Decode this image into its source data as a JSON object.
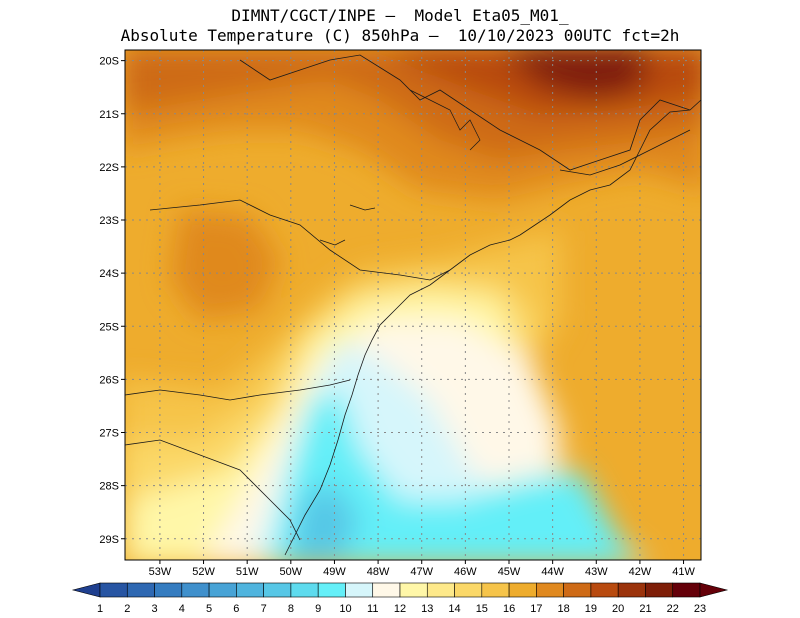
{
  "header": {
    "line1": "DIMNT/CGCT/INPE –  Model Eta05_M01_",
    "line2": "Absolute Temperature (C) 850hPa –  10/10/2023 00UTC fct=2h"
  },
  "map": {
    "lat_labels": [
      "20S",
      "21S",
      "22S",
      "23S",
      "24S",
      "25S",
      "26S",
      "27S",
      "28S",
      "29S"
    ],
    "lon_labels": [
      "53W",
      "52W",
      "51W",
      "50W",
      "49W",
      "48W",
      "47W",
      "46W",
      "45W",
      "44W",
      "43W",
      "42W",
      "41W"
    ],
    "lat_range": [
      -29.4,
      -19.8
    ],
    "lon_range": [
      -53.8,
      -40.6
    ],
    "grid": true
  },
  "colorbar": {
    "labels": [
      "1",
      "2",
      "3",
      "4",
      "5",
      "6",
      "7",
      "8",
      "9",
      "10",
      "11",
      "12",
      "13",
      "14",
      "15",
      "16",
      "17",
      "18",
      "19",
      "20",
      "21",
      "22",
      "23"
    ],
    "colors": [
      "#1f3f8f",
      "#2755a3",
      "#2e68b2",
      "#357cc0",
      "#3f90cc",
      "#47a3d6",
      "#4fb4de",
      "#57c7e6",
      "#5edbee",
      "#64eff8",
      "#d6f6fb",
      "#fff8e8",
      "#fff7a8",
      "#fee98a",
      "#fbd868",
      "#f6c44a",
      "#eeac2d",
      "#e0891f",
      "#ce6a16",
      "#b84a0f",
      "#9b330b",
      "#7e1e08",
      "#650009"
    ],
    "ends": [
      "#1f3f8f",
      "#650009"
    ]
  }
}
